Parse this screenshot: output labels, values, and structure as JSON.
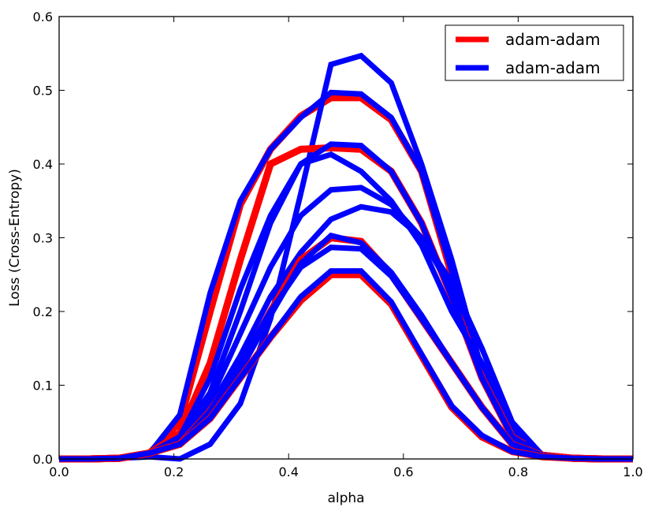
{
  "chart_data": {
    "type": "line",
    "xlabel": "alpha",
    "ylabel": "Loss (Cross-Entropy)",
    "xlim": [
      0.0,
      1.0
    ],
    "ylim": [
      0.0,
      0.6
    ],
    "xticks": [
      "0.0",
      "0.2",
      "0.4",
      "0.6",
      "0.8",
      "1.0"
    ],
    "yticks": [
      "0.0",
      "0.1",
      "0.2",
      "0.3",
      "0.4",
      "0.5",
      "0.6"
    ],
    "grid": false,
    "legend_position": "top-right",
    "legend": [
      {
        "label": "adam-adam",
        "color": "#ff0000"
      },
      {
        "label": "adam-adam",
        "color": "#0000ff"
      }
    ],
    "x": [
      0.0,
      0.0526,
      0.1053,
      0.1579,
      0.2105,
      0.2632,
      0.3158,
      0.3684,
      0.4211,
      0.4737,
      0.5263,
      0.5789,
      0.6316,
      0.6842,
      0.7368,
      0.7895,
      0.8421,
      0.8947,
      0.9474,
      1.0
    ],
    "series": [
      {
        "color": "#ff0000",
        "values": [
          0.0,
          0.0,
          0.001,
          0.008,
          0.05,
          0.2,
          0.345,
          0.42,
          0.465,
          0.49,
          0.49,
          0.46,
          0.39,
          0.25,
          0.12,
          0.035,
          0.005,
          0.001,
          0.0,
          0.0
        ]
      },
      {
        "color": "#0000ff",
        "values": [
          0.0,
          0.0,
          0.001,
          0.008,
          0.06,
          0.225,
          0.35,
          0.42,
          0.463,
          0.497,
          0.495,
          0.463,
          0.39,
          0.255,
          0.12,
          0.035,
          0.005,
          0.001,
          0.0,
          0.0
        ]
      },
      {
        "color": "#0000ff",
        "values": [
          0.0,
          0.0,
          0.001,
          0.003,
          0.0,
          0.02,
          0.075,
          0.19,
          0.36,
          0.535,
          0.547,
          0.51,
          0.4,
          0.27,
          0.12,
          0.04,
          0.005,
          0.001,
          0.0,
          0.0
        ]
      },
      {
        "color": "#ff0000",
        "values": [
          0.0,
          0.0,
          0.001,
          0.008,
          0.035,
          0.13,
          0.27,
          0.4,
          0.42,
          0.422,
          0.42,
          0.39,
          0.32,
          0.22,
          0.11,
          0.03,
          0.005,
          0.001,
          0.0,
          0.0
        ]
      },
      {
        "color": "#0000ff",
        "values": [
          0.0,
          0.0,
          0.001,
          0.008,
          0.03,
          0.11,
          0.23,
          0.33,
          0.4,
          0.427,
          0.425,
          0.39,
          0.32,
          0.22,
          0.11,
          0.03,
          0.005,
          0.001,
          0.0,
          0.0
        ]
      },
      {
        "color": "#0000ff",
        "values": [
          0.0,
          0.0,
          0.001,
          0.008,
          0.03,
          0.09,
          0.2,
          0.32,
          0.4,
          0.413,
          0.39,
          0.35,
          0.29,
          0.2,
          0.13,
          0.05,
          0.005,
          0.001,
          0.0,
          0.0
        ]
      },
      {
        "color": "#0000ff",
        "values": [
          0.0,
          0.0,
          0.001,
          0.008,
          0.03,
          0.08,
          0.17,
          0.26,
          0.33,
          0.365,
          0.368,
          0.345,
          0.3,
          0.23,
          0.15,
          0.05,
          0.005,
          0.001,
          0.0,
          0.0
        ]
      },
      {
        "color": "#0000ff",
        "values": [
          0.0,
          0.0,
          0.001,
          0.008,
          0.02,
          0.07,
          0.14,
          0.22,
          0.28,
          0.325,
          0.342,
          0.335,
          0.3,
          0.24,
          0.15,
          0.05,
          0.005,
          0.001,
          0.0,
          0.0
        ]
      },
      {
        "color": "#ff0000",
        "values": [
          0.0,
          0.0,
          0.001,
          0.008,
          0.02,
          0.065,
          0.125,
          0.2,
          0.27,
          0.3,
          0.295,
          0.25,
          0.19,
          0.13,
          0.07,
          0.02,
          0.005,
          0.001,
          0.0,
          0.0
        ]
      },
      {
        "color": "#0000ff",
        "values": [
          0.0,
          0.0,
          0.001,
          0.008,
          0.02,
          0.06,
          0.12,
          0.195,
          0.265,
          0.303,
          0.293,
          0.253,
          0.195,
          0.13,
          0.07,
          0.02,
          0.005,
          0.001,
          0.0,
          0.0
        ]
      },
      {
        "color": "#0000ff",
        "values": [
          0.0,
          0.0,
          0.001,
          0.008,
          0.02,
          0.065,
          0.13,
          0.2,
          0.26,
          0.287,
          0.285,
          0.248,
          0.19,
          0.13,
          0.07,
          0.02,
          0.005,
          0.001,
          0.0,
          0.0
        ]
      },
      {
        "color": "#ff0000",
        "values": [
          0.0,
          0.0,
          0.001,
          0.008,
          0.02,
          0.055,
          0.11,
          0.165,
          0.215,
          0.25,
          0.25,
          0.21,
          0.14,
          0.07,
          0.03,
          0.01,
          0.003,
          0.001,
          0.0,
          0.0
        ]
      },
      {
        "color": "#0000ff",
        "values": [
          0.0,
          0.0,
          0.001,
          0.008,
          0.02,
          0.055,
          0.11,
          0.165,
          0.22,
          0.255,
          0.255,
          0.213,
          0.142,
          0.072,
          0.032,
          0.01,
          0.003,
          0.001,
          0.0,
          0.0
        ]
      }
    ]
  }
}
